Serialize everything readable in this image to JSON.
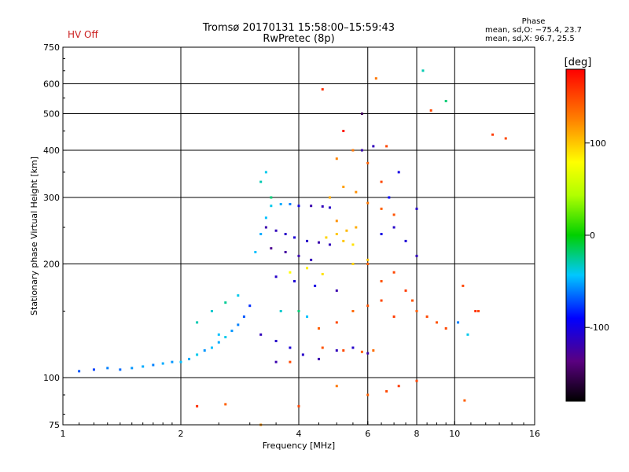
{
  "header": {
    "title_line1": "Tromsø 20170131 15:58:00–15:59:43",
    "title_line2": "RwPretec (8p)",
    "status": "HV Off",
    "phase_title": "Phase",
    "phase_o": "mean, sd,O: −75.4, 23.7",
    "phase_x": "mean, sd,X:  96.7, 25.5"
  },
  "colors": {
    "status": "#cc2020",
    "grid": "#000000"
  },
  "chart_data": {
    "type": "scatter",
    "title": "",
    "xlabel": "Frequency [MHz]",
    "ylabel": "Stationary phase Virtual Height [km]",
    "x_scale": "log",
    "y_scale": "log",
    "xlim": [
      1,
      16
    ],
    "ylim": [
      75,
      750
    ],
    "x_ticks": [
      1,
      2,
      4,
      6,
      8,
      10,
      16
    ],
    "x_tick_labels": [
      "1",
      "2",
      "4",
      "6",
      "8",
      "10",
      "16"
    ],
    "x_grid_lines": [
      2,
      4,
      6,
      8,
      10
    ],
    "y_ticks": [
      75,
      100,
      200,
      300,
      400,
      500,
      600,
      750
    ],
    "y_tick_labels": [
      "75",
      "100",
      "200",
      "300",
      "400",
      "500",
      "600",
      "750"
    ],
    "y_grid_lines": [
      100,
      200,
      300,
      400,
      500,
      600
    ],
    "grid": true,
    "colorbar": {
      "label": "[deg]",
      "range": [
        -180,
        180
      ],
      "ticks": [
        100,
        0,
        -100
      ],
      "tick_labels": [
        "100",
        "0",
        "-100"
      ],
      "placement": "right"
    },
    "series": [
      {
        "points": [
          [
            1.1,
            104,
            -70
          ],
          [
            1.2,
            105,
            -75
          ],
          [
            1.3,
            106,
            -60
          ],
          [
            1.4,
            105,
            -65
          ],
          [
            1.5,
            106,
            -55
          ],
          [
            1.6,
            107,
            -50
          ],
          [
            1.7,
            108,
            -60
          ],
          [
            1.8,
            109,
            -50
          ],
          [
            1.9,
            110,
            -55
          ],
          [
            2.0,
            110,
            -45
          ],
          [
            2.1,
            112,
            -50
          ],
          [
            2.2,
            115,
            -40
          ],
          [
            2.3,
            118,
            -55
          ],
          [
            2.4,
            120,
            -45
          ],
          [
            2.5,
            124,
            -50
          ],
          [
            2.6,
            128,
            -40
          ],
          [
            2.7,
            133,
            -55
          ],
          [
            2.8,
            138,
            -60
          ],
          [
            2.9,
            145,
            -70
          ],
          [
            3.0,
            155,
            -80
          ],
          [
            2.2,
            140,
            -30
          ],
          [
            2.4,
            150,
            -35
          ],
          [
            2.6,
            158,
            -25
          ],
          [
            2.8,
            165,
            -40
          ],
          [
            2.5,
            130,
            -45
          ],
          [
            3.1,
            215,
            -45
          ],
          [
            3.2,
            240,
            -50
          ],
          [
            3.3,
            265,
            -45
          ],
          [
            3.4,
            285,
            -40
          ],
          [
            3.6,
            288,
            -50
          ],
          [
            3.8,
            288,
            -60
          ],
          [
            4.0,
            285,
            -100
          ],
          [
            4.3,
            285,
            -120
          ],
          [
            4.6,
            284,
            -115
          ],
          [
            4.8,
            282,
            -110
          ],
          [
            3.3,
            250,
            -120
          ],
          [
            3.5,
            245,
            -115
          ],
          [
            3.7,
            240,
            -110
          ],
          [
            3.9,
            235,
            -105
          ],
          [
            4.2,
            230,
            -110
          ],
          [
            4.5,
            228,
            -120
          ],
          [
            4.8,
            225,
            -115
          ],
          [
            3.4,
            220,
            -130
          ],
          [
            3.7,
            215,
            -125
          ],
          [
            4.0,
            210,
            -120
          ],
          [
            4.3,
            205,
            -115
          ],
          [
            3.5,
            185,
            -110
          ],
          [
            3.9,
            180,
            -105
          ],
          [
            4.4,
            175,
            -100
          ],
          [
            5.0,
            170,
            -120
          ],
          [
            3.2,
            130,
            -115
          ],
          [
            3.5,
            125,
            -110
          ],
          [
            3.8,
            120,
            -105
          ],
          [
            4.1,
            115,
            -110
          ],
          [
            4.5,
            112,
            -120
          ],
          [
            5.0,
            118,
            -115
          ],
          [
            5.5,
            120,
            -110
          ],
          [
            6.0,
            116,
            -120
          ],
          [
            3.2,
            330,
            -30
          ],
          [
            3.3,
            350,
            -40
          ],
          [
            3.4,
            300,
            -20
          ],
          [
            3.6,
            150,
            -35
          ],
          [
            4.0,
            150,
            -20
          ],
          [
            4.2,
            145,
            -45
          ],
          [
            4.7,
            235,
            95
          ],
          [
            5.0,
            240,
            100
          ],
          [
            5.3,
            245,
            105
          ],
          [
            5.6,
            250,
            110
          ],
          [
            5.0,
            260,
            120
          ],
          [
            5.5,
            225,
            90
          ],
          [
            5.2,
            230,
            100
          ],
          [
            3.8,
            190,
            80
          ],
          [
            4.2,
            195,
            85
          ],
          [
            4.6,
            188,
            90
          ],
          [
            5.5,
            200,
            95
          ],
          [
            6.0,
            205,
            100
          ],
          [
            4.5,
            135,
            140
          ],
          [
            5.0,
            140,
            150
          ],
          [
            5.5,
            150,
            135
          ],
          [
            6.0,
            155,
            145
          ],
          [
            6.5,
            160,
            150
          ],
          [
            7.0,
            145,
            155
          ],
          [
            4.6,
            120,
            145
          ],
          [
            5.2,
            118,
            150
          ],
          [
            5.8,
            117,
            140
          ],
          [
            6.2,
            118,
            135
          ],
          [
            3.8,
            110,
            150
          ],
          [
            4.8,
            300,
            110
          ],
          [
            5.2,
            320,
            115
          ],
          [
            5.6,
            310,
            120
          ],
          [
            6.0,
            290,
            130
          ],
          [
            6.5,
            280,
            140
          ],
          [
            7.0,
            270,
            145
          ],
          [
            5.0,
            380,
            125
          ],
          [
            5.5,
            400,
            130
          ],
          [
            6.0,
            370,
            140
          ],
          [
            6.5,
            330,
            150
          ],
          [
            6.7,
            410,
            150
          ],
          [
            6.0,
            200,
            140
          ],
          [
            6.5,
            180,
            145
          ],
          [
            7.0,
            190,
            150
          ],
          [
            7.5,
            170,
            155
          ],
          [
            7.8,
            160,
            145
          ],
          [
            8.0,
            150,
            140
          ],
          [
            8.5,
            145,
            150
          ],
          [
            9.0,
            140,
            145
          ],
          [
            9.5,
            135,
            150
          ],
          [
            6.5,
            240,
            -100
          ],
          [
            7.0,
            250,
            -110
          ],
          [
            7.5,
            230,
            -105
          ],
          [
            8.0,
            210,
            -115
          ],
          [
            6.8,
            300,
            -90
          ],
          [
            7.2,
            350,
            -100
          ],
          [
            8.0,
            280,
            -110
          ],
          [
            5.8,
            400,
            -120
          ],
          [
            6.2,
            410,
            -115
          ],
          [
            4.6,
            580,
            160
          ],
          [
            5.2,
            450,
            170
          ],
          [
            5.8,
            500,
            -150
          ],
          [
            6.3,
            620,
            130
          ],
          [
            8.7,
            510,
            150
          ],
          [
            9.5,
            540,
            -20
          ],
          [
            8.3,
            650,
            -30
          ],
          [
            11.3,
            150,
            160
          ],
          [
            10.5,
            175,
            150
          ],
          [
            12.5,
            440,
            155
          ],
          [
            13.5,
            430,
            150
          ],
          [
            10.6,
            87,
            140
          ],
          [
            10.2,
            140,
            -60
          ],
          [
            10.8,
            130,
            -40
          ],
          [
            11.5,
            150,
            150
          ],
          [
            2.2,
            84,
            160
          ],
          [
            2.6,
            85,
            140
          ],
          [
            3.2,
            75,
            120
          ],
          [
            3.5,
            110,
            -120
          ],
          [
            4.0,
            84,
            150
          ],
          [
            5.0,
            95,
            130
          ],
          [
            6.0,
            90,
            140
          ],
          [
            6.7,
            92,
            150
          ],
          [
            7.2,
            95,
            155
          ],
          [
            8.0,
            98,
            150
          ]
        ]
      }
    ]
  }
}
